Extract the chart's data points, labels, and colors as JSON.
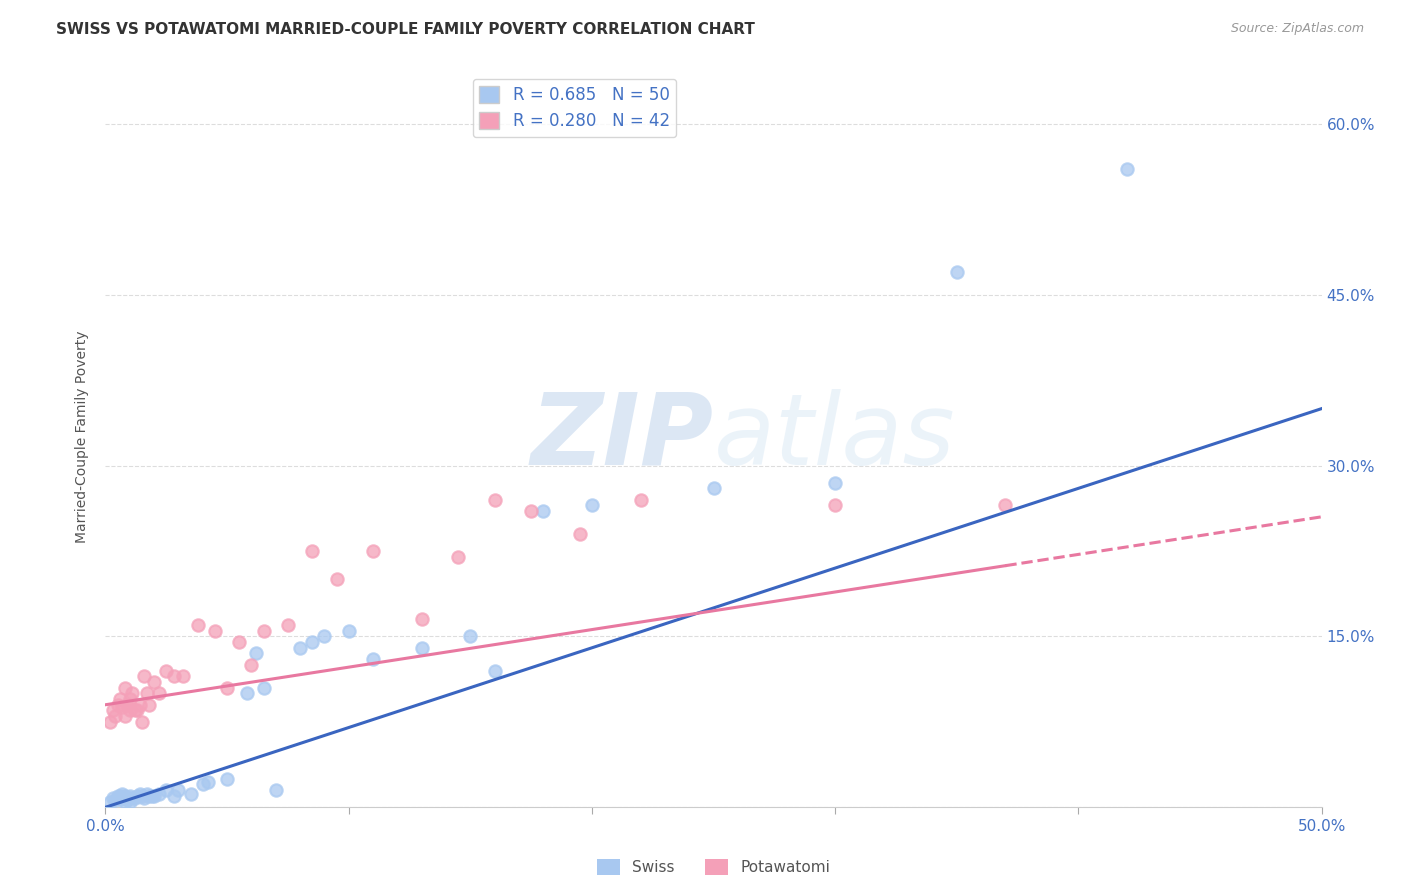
{
  "title": "SWISS VS POTAWATOMI MARRIED-COUPLE FAMILY POVERTY CORRELATION CHART",
  "source": "Source: ZipAtlas.com",
  "ylabel": "Married-Couple Family Poverty",
  "xlim": [
    0.0,
    0.5
  ],
  "ylim": [
    0.0,
    0.65
  ],
  "swiss_R": "0.685",
  "swiss_N": "50",
  "potawatomi_R": "0.280",
  "potawatomi_N": "42",
  "swiss_color": "#A8C8F0",
  "potawatomi_color": "#F4A0B8",
  "swiss_line_color": "#3A65C0",
  "potawatomi_line_color": "#E878A0",
  "background_color": "#FFFFFF",
  "grid_color": "#DDDDDD",
  "title_color": "#333333",
  "swiss_x": [
    0.002,
    0.003,
    0.004,
    0.005,
    0.005,
    0.006,
    0.006,
    0.007,
    0.007,
    0.008,
    0.008,
    0.009,
    0.01,
    0.01,
    0.011,
    0.012,
    0.013,
    0.014,
    0.015,
    0.016,
    0.017,
    0.018,
    0.019,
    0.02,
    0.022,
    0.025,
    0.028,
    0.03,
    0.035,
    0.04,
    0.042,
    0.05,
    0.058,
    0.062,
    0.065,
    0.07,
    0.08,
    0.085,
    0.09,
    0.1,
    0.11,
    0.13,
    0.15,
    0.16,
    0.18,
    0.2,
    0.25,
    0.3,
    0.35,
    0.42
  ],
  "swiss_y": [
    0.005,
    0.008,
    0.006,
    0.01,
    0.008,
    0.007,
    0.01,
    0.008,
    0.012,
    0.005,
    0.01,
    0.007,
    0.005,
    0.01,
    0.008,
    0.008,
    0.01,
    0.012,
    0.01,
    0.008,
    0.012,
    0.01,
    0.01,
    0.01,
    0.012,
    0.015,
    0.01,
    0.015,
    0.012,
    0.02,
    0.022,
    0.025,
    0.1,
    0.135,
    0.105,
    0.015,
    0.14,
    0.145,
    0.15,
    0.155,
    0.13,
    0.14,
    0.15,
    0.12,
    0.26,
    0.265,
    0.28,
    0.285,
    0.47,
    0.56
  ],
  "potawatomi_x": [
    0.002,
    0.003,
    0.004,
    0.005,
    0.006,
    0.007,
    0.008,
    0.008,
    0.009,
    0.01,
    0.01,
    0.011,
    0.012,
    0.013,
    0.014,
    0.015,
    0.016,
    0.017,
    0.018,
    0.02,
    0.022,
    0.025,
    0.028,
    0.032,
    0.038,
    0.045,
    0.05,
    0.055,
    0.06,
    0.065,
    0.075,
    0.085,
    0.095,
    0.11,
    0.13,
    0.145,
    0.16,
    0.175,
    0.195,
    0.22,
    0.3,
    0.37
  ],
  "potawatomi_y": [
    0.075,
    0.085,
    0.08,
    0.09,
    0.095,
    0.088,
    0.08,
    0.105,
    0.09,
    0.085,
    0.095,
    0.1,
    0.085,
    0.085,
    0.09,
    0.075,
    0.115,
    0.1,
    0.09,
    0.11,
    0.1,
    0.12,
    0.115,
    0.115,
    0.16,
    0.155,
    0.105,
    0.145,
    0.125,
    0.155,
    0.16,
    0.225,
    0.2,
    0.225,
    0.165,
    0.22,
    0.27,
    0.26,
    0.24,
    0.27,
    0.265,
    0.265
  ],
  "swiss_line_x": [
    0.0,
    0.5
  ],
  "swiss_line_y": [
    0.0,
    0.35
  ],
  "potawatomi_line_x": [
    0.0,
    0.5
  ],
  "potawatomi_line_y": [
    0.09,
    0.255
  ]
}
